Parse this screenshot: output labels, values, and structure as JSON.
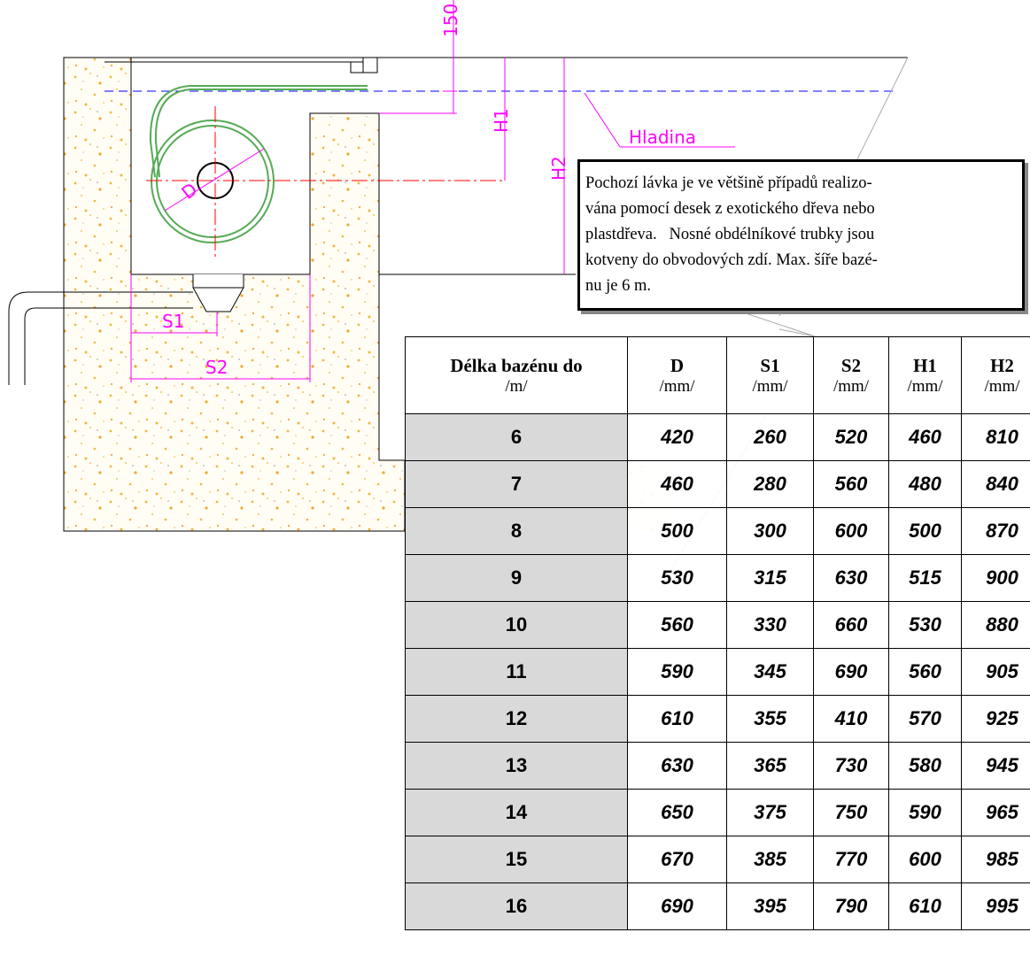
{
  "drawing": {
    "dim_150": "150",
    "dim_h1": "H1",
    "dim_h2": "H2",
    "water_level": "Hladina",
    "dim_d": "D",
    "dim_s1": "S1",
    "dim_s2": "S2"
  },
  "note": {
    "lines": [
      "Pochozí lávka je ve většině případů realizo-",
      "vána pomocí desek z exotického dřeva nebo",
      "plastdřeva.   Nosné obdélníkové trubky jsou",
      "kotveny do obvodových zdí. Max. šíře bazé-",
      "nu je 6 m."
    ]
  },
  "table": {
    "header": [
      {
        "name": "Délka bazénu do",
        "unit": "/m/"
      },
      {
        "name": "D",
        "unit": "/mm/"
      },
      {
        "name": "S1",
        "unit": "/mm/"
      },
      {
        "name": "S2",
        "unit": "/mm/"
      },
      {
        "name": "H1",
        "unit": "/mm/"
      },
      {
        "name": "H2",
        "unit": "/mm/"
      }
    ],
    "rows": [
      [
        6,
        420,
        260,
        520,
        460,
        810
      ],
      [
        7,
        460,
        280,
        560,
        480,
        840
      ],
      [
        8,
        500,
        300,
        600,
        500,
        870
      ],
      [
        9,
        530,
        315,
        630,
        515,
        900
      ],
      [
        10,
        560,
        330,
        660,
        530,
        880
      ],
      [
        11,
        590,
        345,
        690,
        560,
        905
      ],
      [
        12,
        610,
        355,
        410,
        570,
        925
      ],
      [
        13,
        630,
        365,
        730,
        580,
        945
      ],
      [
        14,
        650,
        375,
        750,
        590,
        965
      ],
      [
        15,
        670,
        385,
        770,
        600,
        985
      ],
      [
        16,
        690,
        395,
        790,
        610,
        995
      ]
    ]
  }
}
